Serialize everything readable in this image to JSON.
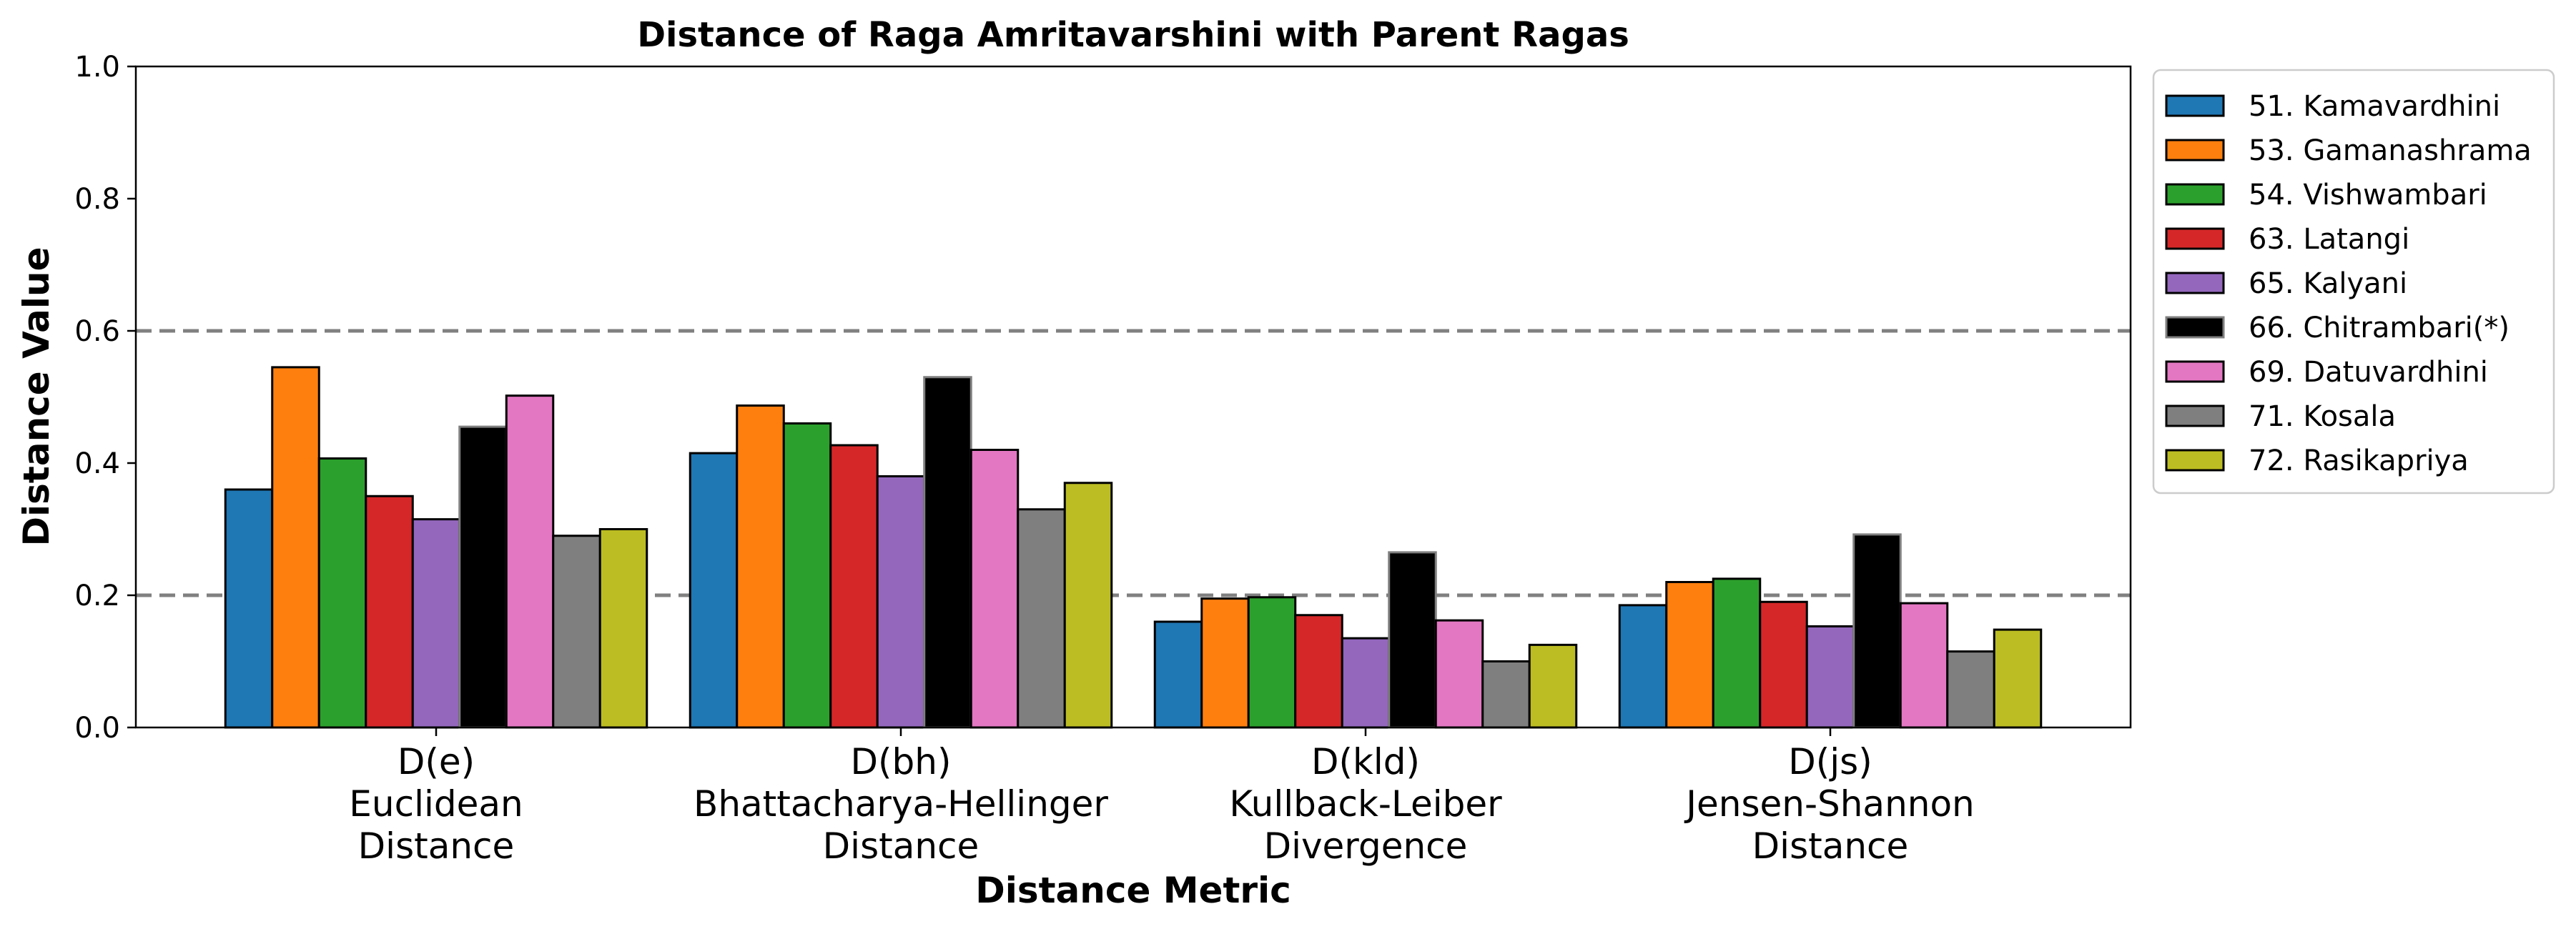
{
  "chart_data": {
    "type": "bar",
    "title": "Distance of Raga Amritavarshini with Parent Ragas",
    "xlabel": "Distance Metric",
    "ylabel": "Distance Value",
    "ylim": [
      0,
      1.0
    ],
    "yticks": [
      "0.0",
      "0.2",
      "0.4",
      "0.6",
      "0.8",
      "1.0"
    ],
    "reference_lines": [
      0.2,
      0.6
    ],
    "grid": false,
    "legend_position": "outside-right-top",
    "categories": [
      {
        "lines": [
          "D(e)",
          "Euclidean",
          "Distance"
        ]
      },
      {
        "lines": [
          "D(bh)",
          "Bhattacharya-Hellinger",
          "Distance"
        ]
      },
      {
        "lines": [
          "D(kld)",
          "Kullback-Leiber",
          "Divergence"
        ]
      },
      {
        "lines": [
          "D(js)",
          "Jensen-Shannon",
          "Distance"
        ]
      }
    ],
    "series": [
      {
        "name": "51. Kamavardhini",
        "color": "#1f77b4",
        "edge": "#000000",
        "values": [
          0.36,
          0.415,
          0.16,
          0.185
        ]
      },
      {
        "name": "53. Gamanashrama",
        "color": "#ff7f0e",
        "edge": "#000000",
        "values": [
          0.545,
          0.487,
          0.195,
          0.22
        ]
      },
      {
        "name": "54. Vishwambari",
        "color": "#2ca02c",
        "edge": "#000000",
        "values": [
          0.407,
          0.46,
          0.197,
          0.225
        ]
      },
      {
        "name": "63. Latangi",
        "color": "#d62728",
        "edge": "#000000",
        "values": [
          0.35,
          0.427,
          0.17,
          0.19
        ]
      },
      {
        "name": "65. Kalyani",
        "color": "#9467bd",
        "edge": "#000000",
        "values": [
          0.315,
          0.38,
          0.135,
          0.153
        ]
      },
      {
        "name": "66. Chitrambari(*)",
        "color": "#000000",
        "edge": "#7f7f7f",
        "values": [
          0.455,
          0.53,
          0.265,
          0.292
        ]
      },
      {
        "name": "69. Datuvardhini",
        "color": "#e377c2",
        "edge": "#000000",
        "values": [
          0.502,
          0.42,
          0.162,
          0.188
        ]
      },
      {
        "name": "71. Kosala",
        "color": "#7f7f7f",
        "edge": "#000000",
        "values": [
          0.29,
          0.33,
          0.1,
          0.115
        ]
      },
      {
        "name": "72. Rasikapriya",
        "color": "#bcbd22",
        "edge": "#000000",
        "values": [
          0.3,
          0.37,
          0.125,
          0.148
        ]
      }
    ]
  }
}
